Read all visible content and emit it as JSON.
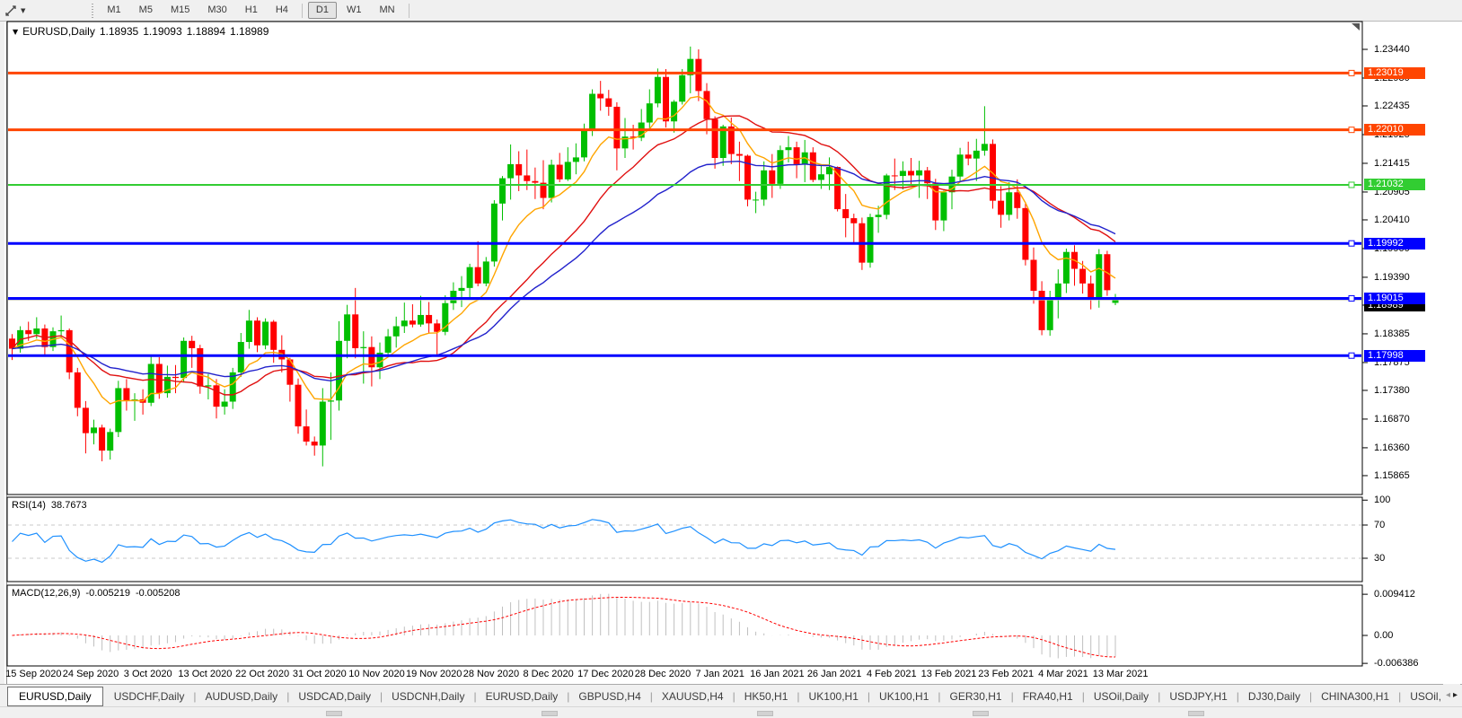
{
  "toolbar": {
    "cursor_tool": "crosshair-cursor",
    "timeframes": [
      "M1",
      "M5",
      "M15",
      "M30",
      "H1",
      "H4",
      "D1",
      "W1",
      "MN"
    ],
    "active_timeframe": "D1"
  },
  "chart": {
    "symbol_label": "EURUSD,Daily",
    "ohlc": {
      "open": "1.18935",
      "high": "1.19093",
      "low": "1.18894",
      "close": "1.18989"
    },
    "y_axis_ticks": [
      "1.23440",
      "1.22930",
      "1.22435",
      "1.21925",
      "1.21415",
      "1.20905",
      "1.20410",
      "1.19900",
      "1.19390",
      "1.18895",
      "1.18385",
      "1.17875",
      "1.17380",
      "1.16870",
      "1.16360",
      "1.15865"
    ],
    "horizontal_lines": [
      {
        "price": 1.23019,
        "label": "1.23019",
        "color": "#ff4500",
        "width": 3
      },
      {
        "price": 1.2201,
        "label": "1.22010",
        "color": "#ff4500",
        "width": 3
      },
      {
        "price": 1.21032,
        "label": "1.21032",
        "color": "#32cd32",
        "width": 2
      },
      {
        "price": 1.19992,
        "label": "1.19992",
        "color": "#0000ff",
        "width": 3
      },
      {
        "price": 1.19015,
        "label": "1.19015",
        "color": "#0000ff",
        "width": 3
      },
      {
        "price": 1.17998,
        "label": "1.17998",
        "color": "#0000ff",
        "width": 3
      }
    ],
    "bid_line": {
      "price": 1.18989,
      "label": "1.18989",
      "line_color": "#b4b4b4",
      "label_bg": "#000000"
    },
    "date_labels": [
      "15 Sep 2020",
      "24 Sep 2020",
      "3 Oct 2020",
      "13 Oct 2020",
      "22 Oct 2020",
      "31 Oct 2020",
      "10 Nov 2020",
      "19 Nov 2020",
      "28 Nov 2020",
      "8 Dec 2020",
      "17 Dec 2020",
      "28 Dec 2020",
      "7 Jan 2021",
      "16 Jan 2021",
      "26 Jan 2021",
      "4 Feb 2021",
      "13 Feb 2021",
      "23 Feb 2021",
      "4 Mar 2021",
      "13 Mar 2021"
    ],
    "candle_colors": {
      "up": "#00bf00",
      "down": "#ff0000"
    },
    "moving_averages": [
      {
        "method": "ema",
        "period": 9,
        "color": "#ffa500"
      },
      {
        "method": "sma",
        "period": 20,
        "color": "#e01010"
      },
      {
        "method": "ema",
        "period": 34,
        "color": "#2222cc"
      }
    ],
    "candles": [
      [
        1.183,
        1.1838,
        1.1792,
        1.1812
      ],
      [
        1.1812,
        1.1852,
        1.1805,
        1.1845
      ],
      [
        1.1845,
        1.186,
        1.1826,
        1.1838
      ],
      [
        1.1838,
        1.1868,
        1.183,
        1.1848
      ],
      [
        1.1848,
        1.1855,
        1.1798,
        1.1815
      ],
      [
        1.1815,
        1.185,
        1.1808,
        1.1843
      ],
      [
        1.1843,
        1.1871,
        1.1832,
        1.1845
      ],
      [
        1.1845,
        1.1848,
        1.1758,
        1.177
      ],
      [
        1.177,
        1.1778,
        1.1692,
        1.1707
      ],
      [
        1.1707,
        1.1719,
        1.1626,
        1.1662
      ],
      [
        1.1662,
        1.1686,
        1.1642,
        1.1672
      ],
      [
        1.1672,
        1.1677,
        1.1612,
        1.1631
      ],
      [
        1.1631,
        1.167,
        1.1615,
        1.1664
      ],
      [
        1.1664,
        1.1755,
        1.1655,
        1.1742
      ],
      [
        1.1742,
        1.1758,
        1.1702,
        1.1719
      ],
      [
        1.1719,
        1.1733,
        1.1684,
        1.1722
      ],
      [
        1.1722,
        1.174,
        1.1695,
        1.1716
      ],
      [
        1.1716,
        1.1798,
        1.171,
        1.1785
      ],
      [
        1.1785,
        1.1797,
        1.1723,
        1.1733
      ],
      [
        1.1733,
        1.1782,
        1.1725,
        1.1762
      ],
      [
        1.1762,
        1.1783,
        1.1733,
        1.176
      ],
      [
        1.176,
        1.1832,
        1.1752,
        1.1826
      ],
      [
        1.1826,
        1.1835,
        1.1778,
        1.1813
      ],
      [
        1.1813,
        1.1819,
        1.1732,
        1.1745
      ],
      [
        1.1745,
        1.1767,
        1.1722,
        1.1747
      ],
      [
        1.1747,
        1.1758,
        1.1688,
        1.1709
      ],
      [
        1.1709,
        1.174,
        1.1695,
        1.1718
      ],
      [
        1.1718,
        1.1778,
        1.1705,
        1.177
      ],
      [
        1.177,
        1.184,
        1.1762,
        1.1824
      ],
      [
        1.1824,
        1.1881,
        1.1812,
        1.1862
      ],
      [
        1.1862,
        1.1868,
        1.1806,
        1.1818
      ],
      [
        1.1818,
        1.1866,
        1.1811,
        1.186
      ],
      [
        1.186,
        1.1863,
        1.1787,
        1.181
      ],
      [
        1.181,
        1.1836,
        1.177,
        1.1793
      ],
      [
        1.1793,
        1.1796,
        1.1718,
        1.1748
      ],
      [
        1.1748,
        1.1759,
        1.1661,
        1.1674
      ],
      [
        1.1674,
        1.1704,
        1.164,
        1.1647
      ],
      [
        1.1647,
        1.1656,
        1.1622,
        1.164
      ],
      [
        1.164,
        1.1742,
        1.1603,
        1.1718
      ],
      [
        1.1718,
        1.177,
        1.165,
        1.172
      ],
      [
        1.172,
        1.1861,
        1.1702,
        1.1826
      ],
      [
        1.1826,
        1.189,
        1.1795,
        1.1873
      ],
      [
        1.1873,
        1.192,
        1.1795,
        1.1813
      ],
      [
        1.1813,
        1.1843,
        1.175,
        1.1815
      ],
      [
        1.1815,
        1.1834,
        1.1745,
        1.1779
      ],
      [
        1.1779,
        1.1823,
        1.1758,
        1.1805
      ],
      [
        1.1805,
        1.1847,
        1.1799,
        1.1834
      ],
      [
        1.1834,
        1.1869,
        1.1814,
        1.1852
      ],
      [
        1.1852,
        1.1894,
        1.184,
        1.1862
      ],
      [
        1.1862,
        1.1891,
        1.185,
        1.1855
      ],
      [
        1.1855,
        1.1906,
        1.1851,
        1.1872
      ],
      [
        1.1872,
        1.1895,
        1.1839,
        1.1857
      ],
      [
        1.1857,
        1.1864,
        1.18,
        1.1842
      ],
      [
        1.1842,
        1.1907,
        1.1836,
        1.1893
      ],
      [
        1.1893,
        1.193,
        1.1881,
        1.1915
      ],
      [
        1.1915,
        1.1941,
        1.1886,
        1.192
      ],
      [
        1.192,
        1.1963,
        1.1903,
        1.1957
      ],
      [
        1.1957,
        1.2003,
        1.1923,
        1.1928
      ],
      [
        1.1928,
        1.1975,
        1.1923,
        1.1967
      ],
      [
        1.1967,
        1.2076,
        1.1958,
        1.207
      ],
      [
        1.207,
        1.2119,
        1.204,
        1.2115
      ],
      [
        1.2115,
        1.2175,
        1.2077,
        1.214
      ],
      [
        1.214,
        1.2163,
        1.2092,
        1.212
      ],
      [
        1.212,
        1.2166,
        1.2094,
        1.211
      ],
      [
        1.211,
        1.2134,
        1.2078,
        1.2107
      ],
      [
        1.2107,
        1.2147,
        1.206,
        1.208
      ],
      [
        1.208,
        1.2148,
        1.2072,
        1.2139
      ],
      [
        1.2139,
        1.216,
        1.2108,
        1.2113
      ],
      [
        1.2113,
        1.217,
        1.211,
        1.2144
      ],
      [
        1.2144,
        1.2177,
        1.2122,
        1.2152
      ],
      [
        1.2152,
        1.2212,
        1.2145,
        1.22
      ],
      [
        1.22,
        1.2273,
        1.219,
        1.2265
      ],
      [
        1.2265,
        1.2288,
        1.2235,
        1.2257
      ],
      [
        1.2257,
        1.2272,
        1.2226,
        1.2242
      ],
      [
        1.2242,
        1.225,
        1.2129,
        1.2168
      ],
      [
        1.2168,
        1.2222,
        1.2151,
        1.2189
      ],
      [
        1.2189,
        1.221,
        1.2166,
        1.2187
      ],
      [
        1.2187,
        1.2238,
        1.2181,
        1.2214
      ],
      [
        1.2214,
        1.2273,
        1.2203,
        1.2248
      ],
      [
        1.2248,
        1.231,
        1.2241,
        1.2295
      ],
      [
        1.2295,
        1.2309,
        1.2205,
        1.2216
      ],
      [
        1.2216,
        1.2254,
        1.2196,
        1.2251
      ],
      [
        1.2251,
        1.2309,
        1.2246,
        1.2298
      ],
      [
        1.2298,
        1.2349,
        1.2266,
        1.2327
      ],
      [
        1.2327,
        1.2344,
        1.2252,
        1.227
      ],
      [
        1.227,
        1.2284,
        1.2193,
        1.222
      ],
      [
        1.222,
        1.2225,
        1.2132,
        1.2151
      ],
      [
        1.2151,
        1.221,
        1.2137,
        1.2207
      ],
      [
        1.2207,
        1.2223,
        1.214,
        1.2158
      ],
      [
        1.2158,
        1.218,
        1.211,
        1.2155
      ],
      [
        1.2155,
        1.2157,
        1.2065,
        1.2077
      ],
      [
        1.2077,
        1.2091,
        1.2053,
        1.2077
      ],
      [
        1.2077,
        1.2145,
        1.2066,
        1.2129
      ],
      [
        1.2129,
        1.2158,
        1.208,
        1.2105
      ],
      [
        1.2105,
        1.2173,
        1.2096,
        1.2165
      ],
      [
        1.2165,
        1.219,
        1.2143,
        1.217
      ],
      [
        1.217,
        1.218,
        1.2115,
        1.214
      ],
      [
        1.214,
        1.2183,
        1.2108,
        1.2161
      ],
      [
        1.2161,
        1.217,
        1.2108,
        1.2112
      ],
      [
        1.2112,
        1.214,
        1.2096,
        1.2122
      ],
      [
        1.2122,
        1.2152,
        1.2094,
        1.2135
      ],
      [
        1.2135,
        1.2136,
        1.2056,
        1.206
      ],
      [
        1.206,
        1.2087,
        1.201,
        1.2044
      ],
      [
        1.2044,
        1.2052,
        1.1999,
        1.2035
      ],
      [
        1.2035,
        1.2045,
        1.1952,
        1.1965
      ],
      [
        1.1965,
        1.2052,
        1.1956,
        1.2046
      ],
      [
        1.2046,
        1.2066,
        1.2018,
        1.205
      ],
      [
        1.205,
        1.2123,
        1.2042,
        1.212
      ],
      [
        1.212,
        1.215,
        1.2094,
        1.2119
      ],
      [
        1.2119,
        1.2145,
        1.2095,
        1.2128
      ],
      [
        1.2128,
        1.2151,
        1.2102,
        1.212
      ],
      [
        1.212,
        1.2146,
        1.208,
        1.2129
      ],
      [
        1.2129,
        1.2135,
        1.2078,
        1.2106
      ],
      [
        1.2106,
        1.2114,
        1.2023,
        1.204
      ],
      [
        1.204,
        1.2093,
        1.2021,
        1.209
      ],
      [
        1.209,
        1.213,
        1.206,
        1.2118
      ],
      [
        1.2118,
        1.2169,
        1.2108,
        1.2157
      ],
      [
        1.2157,
        1.218,
        1.2138,
        1.215
      ],
      [
        1.215,
        1.2185,
        1.211,
        1.2164
      ],
      [
        1.2164,
        1.2243,
        1.2155,
        1.2176
      ],
      [
        1.2176,
        1.2184,
        1.2061,
        1.2075
      ],
      [
        1.2075,
        1.2101,
        1.2027,
        1.205
      ],
      [
        1.205,
        1.2108,
        1.204,
        1.209
      ],
      [
        1.209,
        1.2113,
        1.2043,
        1.2062
      ],
      [
        1.2062,
        1.207,
        1.196,
        1.197
      ],
      [
        1.197,
        1.1992,
        1.1892,
        1.1915
      ],
      [
        1.1915,
        1.1932,
        1.1836,
        1.1845
      ],
      [
        1.1845,
        1.1915,
        1.1835,
        1.19
      ],
      [
        1.19,
        1.1953,
        1.1866,
        1.1928
      ],
      [
        1.1928,
        1.199,
        1.1911,
        1.1984
      ],
      [
        1.1984,
        1.1996,
        1.1924,
        1.1954
      ],
      [
        1.1954,
        1.1968,
        1.191,
        1.1928
      ],
      [
        1.1928,
        1.1942,
        1.1882,
        1.1899
      ],
      [
        1.1899,
        1.1989,
        1.1885,
        1.198
      ],
      [
        1.198,
        1.1986,
        1.1906,
        1.1916
      ],
      [
        1.18935,
        1.19093,
        1.18894,
        1.18989
      ]
    ]
  },
  "rsi_panel": {
    "label": "RSI(14)",
    "value": "38.7673",
    "axis_ticks": [
      "100",
      "70",
      "30"
    ],
    "levels": [
      70,
      30
    ],
    "line_color": "#1e90ff"
  },
  "macd_panel": {
    "label": "MACD(12,26,9)",
    "value_main": "-0.005219",
    "value_signal": "-0.005208",
    "axis_ticks": [
      "0.009412",
      "0.00",
      "-0.006386"
    ],
    "histogram_color": "#c0c0c0",
    "signal_color": "#ff0000"
  },
  "tabs": {
    "items": [
      "EURUSD,Daily",
      "USDCHF,Daily",
      "AUDUSD,Daily",
      "USDCAD,Daily",
      "USDCNH,Daily",
      "EURUSD,Daily",
      "GBPUSD,H4",
      "XAUUSD,H4",
      "HK50,H1",
      "UK100,H1",
      "UK100,H1",
      "GER30,H1",
      "FRA40,H1",
      "USOil,Daily",
      "USDJPY,H1",
      "DJ30,Daily",
      "CHINA300,H1",
      "USOil,"
    ],
    "active_index": 0,
    "scroll_left_icon": "left-arrow",
    "scroll_right_icon": "right-arrow"
  }
}
